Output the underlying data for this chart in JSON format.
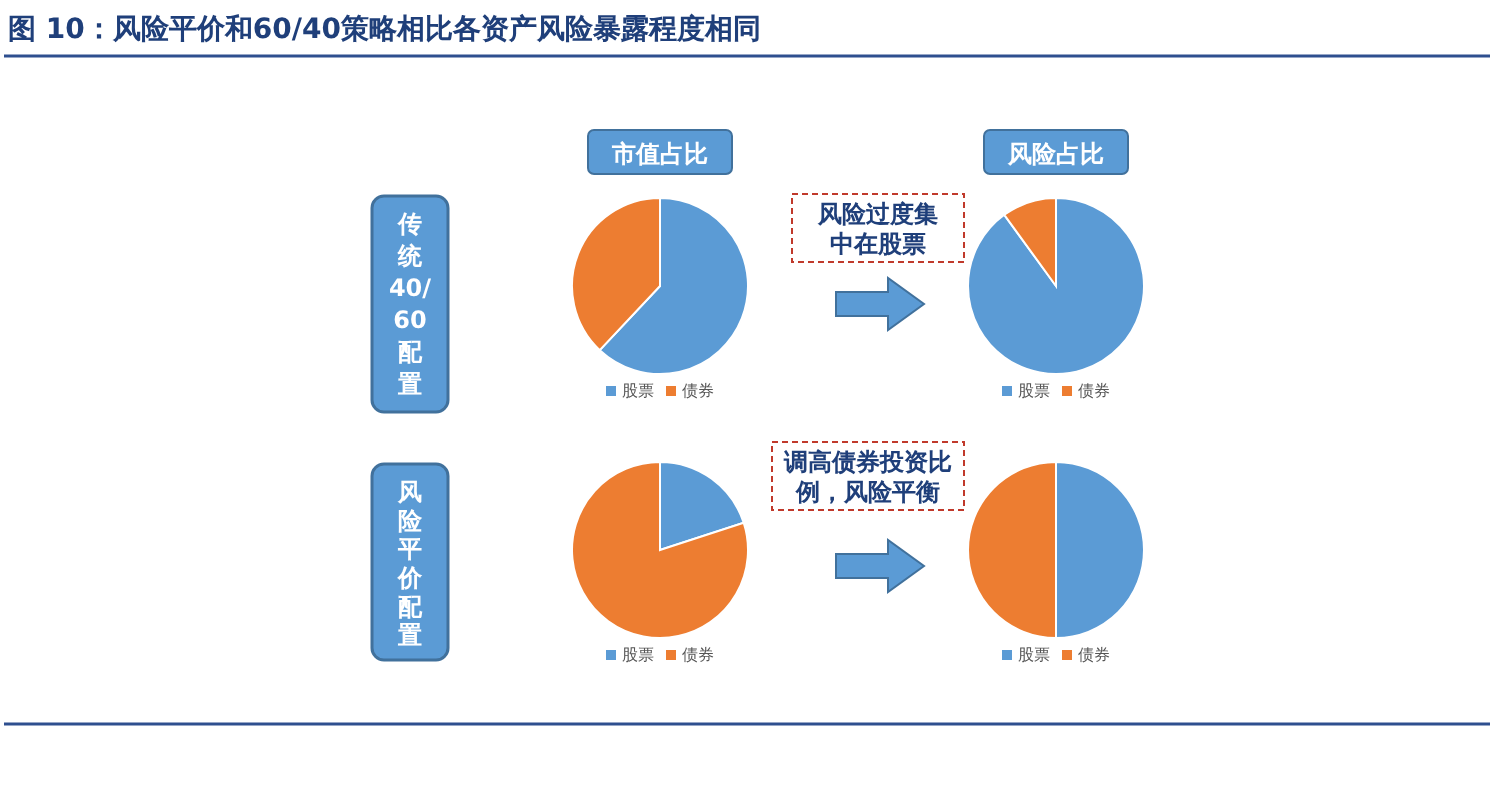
{
  "chart_data": [
    {
      "type": "other",
      "title": "图 10：风险平价和60/40策略相比各资产风险暴露程度相同"
    },
    {
      "type": "pie",
      "title": "市值占比",
      "categories": [
        "股票",
        "债券"
      ],
      "values": [
        62,
        38
      ],
      "colors": [
        "#5b9bd5",
        "#ed7d31"
      ],
      "legend": "bottom",
      "annotations": [
        "传统40/60配置"
      ]
    },
    {
      "type": "pie",
      "title": "风险占比",
      "categories": [
        "股票",
        "债券"
      ],
      "values": [
        90,
        10
      ],
      "colors": [
        "#5b9bd5",
        "#ed7d31"
      ],
      "legend": "bottom",
      "annotations": [
        "风险过度集中在股票"
      ]
    },
    {
      "type": "pie",
      "categories": [
        "股票",
        "债券"
      ],
      "values": [
        20,
        80
      ],
      "colors": [
        "#5b9bd5",
        "#ed7d31"
      ],
      "legend": "bottom",
      "annotations": [
        "风险平价配置"
      ]
    },
    {
      "type": "pie",
      "categories": [
        "股票",
        "债券"
      ],
      "values": [
        50,
        50
      ],
      "colors": [
        "#5b9bd5",
        "#ed7d31"
      ],
      "legend": "bottom",
      "annotations": [
        "调高债券投资比例，风险平衡"
      ]
    }
  ]
}
